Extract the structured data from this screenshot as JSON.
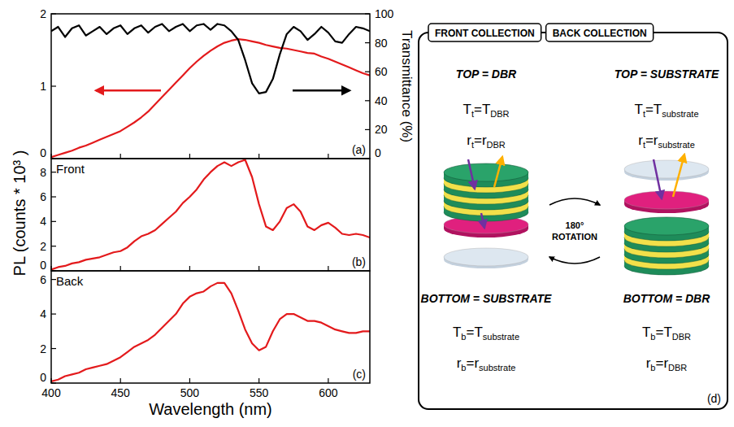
{
  "y_label": "PL (counts * 10³ )",
  "chart_data": [
    {
      "type": "line",
      "panel_label": "(a)",
      "tick_labels": "y",
      "xlim": [
        400,
        630
      ],
      "xticks": [
        400,
        450,
        500,
        550,
        600
      ],
      "ylim": [
        0,
        2
      ],
      "yticks": [
        0,
        1,
        2
      ],
      "y2lim": [
        0,
        100
      ],
      "y2ticks": [
        0,
        20,
        40,
        60,
        80,
        100
      ],
      "y2_label": "Transmittance (%)",
      "x": [
        400,
        405,
        410,
        415,
        420,
        425,
        430,
        435,
        440,
        445,
        450,
        455,
        460,
        465,
        470,
        475,
        480,
        485,
        490,
        495,
        500,
        505,
        510,
        515,
        520,
        525,
        530,
        535,
        540,
        545,
        550,
        555,
        560,
        565,
        570,
        575,
        580,
        585,
        590,
        595,
        600,
        605,
        610,
        615,
        620,
        625,
        630
      ],
      "series": [
        {
          "color": "#e31a1c",
          "values": [
            0.02,
            0.05,
            0.08,
            0.11,
            0.15,
            0.18,
            0.22,
            0.26,
            0.3,
            0.34,
            0.38,
            0.44,
            0.5,
            0.57,
            0.65,
            0.75,
            0.85,
            0.95,
            1.05,
            1.15,
            1.25,
            1.34,
            1.42,
            1.49,
            1.55,
            1.6,
            1.63,
            1.65,
            1.64,
            1.62,
            1.6,
            1.57,
            1.55,
            1.53,
            1.52,
            1.5,
            1.48,
            1.46,
            1.45,
            1.41,
            1.38,
            1.34,
            1.3,
            1.26,
            1.22,
            1.18,
            1.15
          ]
        },
        {
          "color": "#000000",
          "axis": "y2",
          "values": [
            88,
            91,
            84,
            90,
            92,
            85,
            88,
            91,
            86,
            90,
            92,
            86,
            90,
            92,
            87,
            91,
            93,
            88,
            91,
            93,
            88,
            92,
            93,
            89,
            93,
            92,
            88,
            82,
            68,
            52,
            45,
            46,
            55,
            72,
            86,
            91,
            88,
            82,
            86,
            91,
            87,
            81,
            80,
            86,
            91,
            90,
            88
          ]
        }
      ]
    },
    {
      "type": "line",
      "panel_label": "(b)",
      "annotation": "Front",
      "tick_labels": "y",
      "xlim": [
        400,
        630
      ],
      "xticks": [
        400,
        450,
        500,
        550,
        600
      ],
      "ylim": [
        0,
        9.1
      ],
      "yticks": [
        0,
        2,
        4,
        6,
        8
      ],
      "x": [
        400,
        405,
        410,
        415,
        420,
        425,
        430,
        435,
        440,
        445,
        450,
        455,
        460,
        465,
        470,
        475,
        480,
        485,
        490,
        495,
        500,
        505,
        510,
        515,
        520,
        525,
        530,
        535,
        540,
        545,
        550,
        555,
        560,
        565,
        570,
        575,
        580,
        585,
        590,
        595,
        600,
        605,
        610,
        615,
        620,
        625,
        630
      ],
      "series": [
        {
          "color": "#e31a1c",
          "values": [
            0.1,
            0.3,
            0.4,
            0.6,
            0.7,
            0.9,
            1.0,
            1.1,
            1.3,
            1.5,
            1.6,
            1.9,
            2.4,
            2.8,
            3.0,
            3.3,
            3.8,
            4.3,
            4.8,
            5.5,
            6.0,
            6.6,
            7.4,
            8.0,
            8.5,
            8.8,
            8.5,
            8.8,
            9.0,
            7.6,
            5.4,
            3.6,
            3.3,
            4.0,
            5.1,
            5.4,
            4.8,
            3.6,
            3.3,
            3.7,
            3.9,
            3.5,
            3.0,
            2.9,
            3.0,
            2.9,
            2.7
          ]
        }
      ]
    },
    {
      "type": "line",
      "panel_label": "(c)",
      "annotation": "Back",
      "tick_labels": true,
      "x_label": "Wavelength (nm)",
      "xlim": [
        400,
        630
      ],
      "xticks": [
        400,
        450,
        500,
        550,
        600
      ],
      "ylim": [
        0,
        6.5
      ],
      "yticks": [
        0,
        2,
        4,
        6
      ],
      "x": [
        400,
        405,
        410,
        415,
        420,
        425,
        430,
        435,
        440,
        445,
        450,
        455,
        460,
        465,
        470,
        475,
        480,
        485,
        490,
        495,
        500,
        505,
        510,
        515,
        520,
        525,
        530,
        535,
        540,
        545,
        550,
        555,
        560,
        565,
        570,
        575,
        580,
        585,
        590,
        595,
        600,
        605,
        610,
        615,
        620,
        625,
        630
      ],
      "series": [
        {
          "color": "#e31a1c",
          "values": [
            0.1,
            0.2,
            0.4,
            0.5,
            0.6,
            0.8,
            0.9,
            1.0,
            1.1,
            1.3,
            1.5,
            1.8,
            2.1,
            2.3,
            2.5,
            2.8,
            3.2,
            3.6,
            4.0,
            4.6,
            5.0,
            5.2,
            5.3,
            5.6,
            5.8,
            5.8,
            5.2,
            4.2,
            3.1,
            2.3,
            1.9,
            2.1,
            3.0,
            3.7,
            4.0,
            4.0,
            3.8,
            3.6,
            3.6,
            3.5,
            3.3,
            3.1,
            3.0,
            2.9,
            2.9,
            3.0,
            3.0
          ]
        }
      ]
    }
  ],
  "diagram": {
    "panel_label": "(d)",
    "rotation": [
      "180°",
      "ROTATION"
    ],
    "columns": [
      {
        "header": "FRONT COLLECTION",
        "top": "TOP = DBR",
        "T_top": {
          "lhs": "T",
          "lhs_sub": "t",
          "rhs": "=T",
          "rhs_sub": "DBR"
        },
        "r_top": {
          "lhs": "r",
          "lhs_sub": "t",
          "rhs": "=r",
          "rhs_sub": "DBR"
        },
        "bottom": "BOTTOM = SUBSTRATE",
        "T_bottom": {
          "lhs": "T",
          "lhs_sub": "b",
          "rhs": "=T",
          "rhs_sub": "substrate"
        },
        "r_bottom": {
          "lhs": "r",
          "lhs_sub": "b",
          "rhs": "=r",
          "rhs_sub": "substrate"
        }
      },
      {
        "header": "BACK COLLECTION",
        "top": "TOP = SUBSTRATE",
        "T_top": {
          "lhs": "T",
          "lhs_sub": "t",
          "rhs": "=T",
          "rhs_sub": "substrate"
        },
        "r_top": {
          "lhs": "r",
          "lhs_sub": "t",
          "rhs": "=r",
          "rhs_sub": "substrate"
        },
        "bottom": "BOTTOM = DBR",
        "T_bottom": {
          "lhs": "T",
          "lhs_sub": "b",
          "rhs": "=T",
          "rhs_sub": "DBR"
        },
        "r_bottom": {
          "lhs": "r",
          "lhs_sub": "b",
          "rhs": "=r",
          "rhs_sub": "DBR"
        }
      }
    ]
  }
}
